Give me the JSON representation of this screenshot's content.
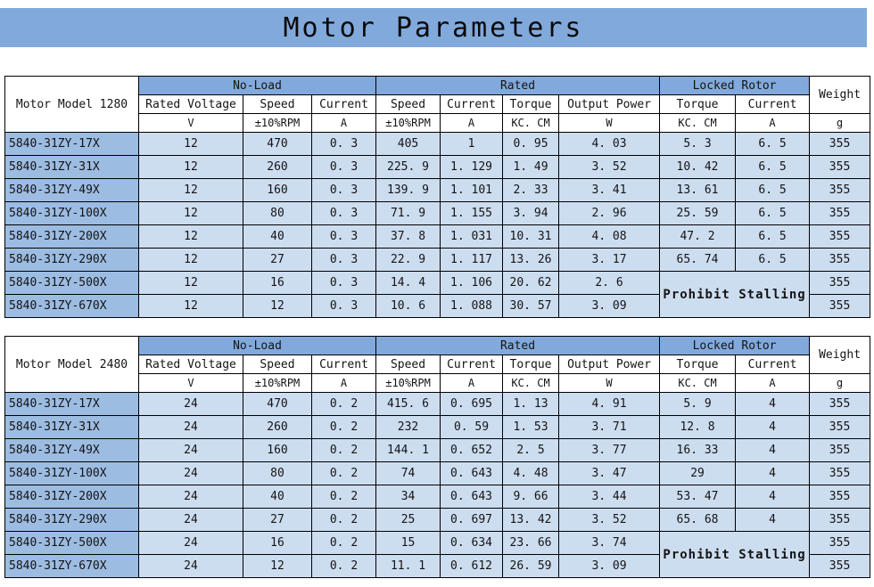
{
  "title": "Motor Parameters",
  "colors": {
    "header_blue": "#82a9db",
    "model_blue": "#9dbce2",
    "data_blue": "#cdddf0"
  },
  "column_headers": {
    "no_load": "No-Load",
    "rated": "Rated",
    "locked_rotor": "Locked Rotor",
    "weight": "Weight",
    "labels": [
      "Rated Voltage",
      "Speed",
      "Current",
      "Speed",
      "Current",
      "Torque",
      "Output Power",
      "Torque",
      "Current"
    ],
    "units": [
      "V",
      "±10%RPM",
      "A",
      "±10%RPM",
      "A",
      "KC. CM",
      "W",
      "KC. CM",
      "A",
      "g"
    ]
  },
  "tables": [
    {
      "model_header": "Motor Model 1280",
      "prohibit_label": "Prohibit Stalling",
      "rows": [
        {
          "model": "5840-31ZY-17X",
          "cells": [
            "12",
            "470",
            "0. 3",
            "405",
            "1",
            "0. 95",
            "4. 03",
            "5. 3",
            "6. 5",
            "355"
          ]
        },
        {
          "model": "5840-31ZY-31X",
          "cells": [
            "12",
            "260",
            "0. 3",
            "225. 9",
            "1. 129",
            "1. 49",
            "3. 52",
            "10. 42",
            "6. 5",
            "355"
          ]
        },
        {
          "model": "5840-31ZY-49X",
          "cells": [
            "12",
            "160",
            "0. 3",
            "139. 9",
            "1. 101",
            "2. 33",
            "3. 41",
            "13. 61",
            "6. 5",
            "355"
          ]
        },
        {
          "model": "5840-31ZY-100X",
          "cells": [
            "12",
            "80",
            "0. 3",
            "71. 9",
            "1. 155",
            "3. 94",
            "2. 96",
            "25. 59",
            "6. 5",
            "355"
          ]
        },
        {
          "model": "5840-31ZY-200X",
          "cells": [
            "12",
            "40",
            "0. 3",
            "37. 8",
            "1. 031",
            "10. 31",
            "4. 08",
            "47. 2",
            "6. 5",
            "355"
          ]
        },
        {
          "model": "5840-31ZY-290X",
          "cells": [
            "12",
            "27",
            "0. 3",
            "22. 9",
            "1. 117",
            "13. 26",
            "3. 17",
            "65. 74",
            "6. 5",
            "355"
          ]
        },
        {
          "model": "5840-31ZY-500X",
          "cells": [
            "12",
            "16",
            "0. 3",
            "14. 4",
            "1. 106",
            "20. 62",
            "2. 6",
            "355"
          ]
        },
        {
          "model": "5840-31ZY-670X",
          "cells": [
            "12",
            "12",
            "0. 3",
            "10. 6",
            "1. 088",
            "30. 57",
            "3. 09",
            "355"
          ]
        }
      ]
    },
    {
      "model_header": "Motor Model 2480",
      "prohibit_label": "Prohibit Stalling",
      "rows": [
        {
          "model": "5840-31ZY-17X",
          "cells": [
            "24",
            "470",
            "0. 2",
            "415. 6",
            "0. 695",
            "1. 13",
            "4. 91",
            "5. 9",
            "4",
            "355"
          ]
        },
        {
          "model": "5840-31ZY-31X",
          "cells": [
            "24",
            "260",
            "0. 2",
            "232",
            "0. 59",
            "1. 53",
            "3. 71",
            "12. 8",
            "4",
            "355"
          ]
        },
        {
          "model": "5840-31ZY-49X",
          "cells": [
            "24",
            "160",
            "0. 2",
            "144. 1",
            "0. 652",
            "2. 5",
            "3. 77",
            "16. 33",
            "4",
            "355"
          ]
        },
        {
          "model": "5840-31ZY-100X",
          "cells": [
            "24",
            "80",
            "0. 2",
            "74",
            "0. 643",
            "4. 48",
            "3. 47",
            "29",
            "4",
            "355"
          ]
        },
        {
          "model": "5840-31ZY-200X",
          "cells": [
            "24",
            "40",
            "0. 2",
            "34",
            "0. 643",
            "9. 66",
            "3. 44",
            "53. 47",
            "4",
            "355"
          ]
        },
        {
          "model": "5840-31ZY-290X",
          "cells": [
            "24",
            "27",
            "0. 2",
            "25",
            "0. 697",
            "13. 42",
            "3. 52",
            "65. 68",
            "4",
            "355"
          ]
        },
        {
          "model": "5840-31ZY-500X",
          "cells": [
            "24",
            "16",
            "0. 2",
            "15",
            "0. 634",
            "23. 66",
            "3. 74",
            "355"
          ]
        },
        {
          "model": "5840-31ZY-670X",
          "cells": [
            "24",
            "12",
            "0. 2",
            "11. 1",
            "0. 612",
            "26. 59",
            "3. 09",
            "355"
          ]
        }
      ]
    }
  ]
}
